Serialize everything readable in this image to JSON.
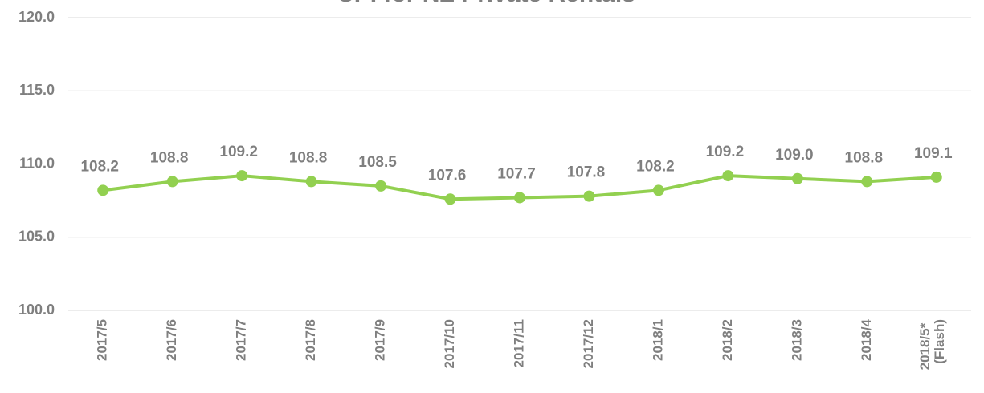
{
  "chart_data": {
    "type": "line",
    "title": "CPI for NZ Private Rentals",
    "categories": [
      "2017/5",
      "2017/6",
      "2017/7",
      "2017/8",
      "2017/9",
      "2017/10",
      "2017/11",
      "2017/12",
      "2018/1",
      "2018/2",
      "2018/3",
      "2018/4",
      "2018/5*\n(Flash)"
    ],
    "series": [
      {
        "name": "CPI",
        "color": "#92d050",
        "values": [
          108.2,
          108.8,
          109.2,
          108.8,
          108.5,
          107.6,
          107.7,
          107.8,
          108.2,
          109.2,
          109.0,
          108.8,
          109.1
        ],
        "value_labels": [
          "108.2",
          "108.8",
          "109.2",
          "108.8",
          "108.5",
          "107.6",
          "107.7",
          "107.8",
          "108.2",
          "109.2",
          "109.0",
          "108.8",
          "109.1"
        ]
      }
    ],
    "ylim": [
      100,
      120
    ],
    "yticks": [
      {
        "value": 100,
        "label": "100.0"
      },
      {
        "value": 105,
        "label": "105.0"
      },
      {
        "value": 110,
        "label": "110.0"
      },
      {
        "value": 115,
        "label": "115.0"
      },
      {
        "value": 120,
        "label": "120.0"
      }
    ],
    "grid": true
  }
}
